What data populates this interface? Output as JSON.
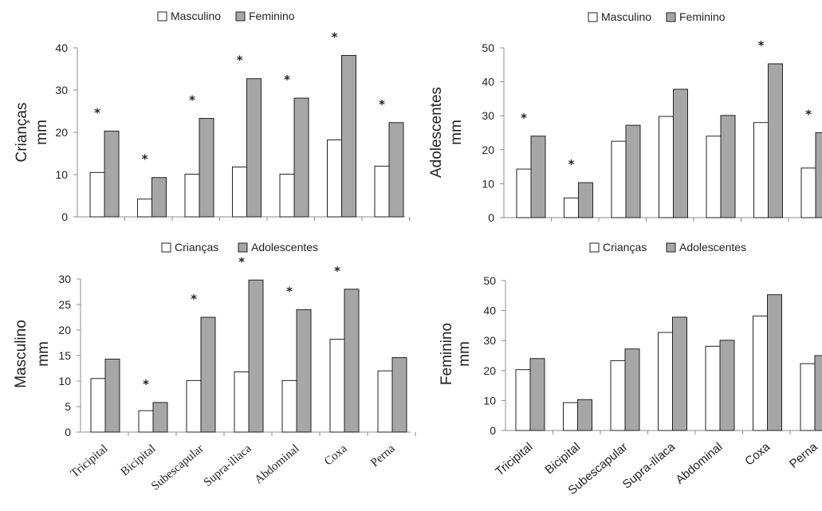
{
  "colors": {
    "masc": "#ffffff",
    "fem": "#a6a6a6",
    "criancas": "#ffffff",
    "adolescentes": "#a6a6a6"
  },
  "chart_data": [
    {
      "type": "bar",
      "panel": "top-left",
      "ylabel_main": "Crianças",
      "ylabel_unit": "mm",
      "ylim": [
        0,
        40
      ],
      "yticks": [
        "0",
        "10",
        "20",
        "30",
        "40"
      ],
      "categories": [
        "Tricipital",
        "Bicipital",
        "Subescapular",
        "Supra-ilíaca",
        "Abdominal",
        "Coxa",
        "Perna"
      ],
      "legend": [
        "Masculino",
        "Feminino"
      ],
      "series": [
        {
          "name": "Masculino",
          "values": [
            10.5,
            4.2,
            10.1,
            11.8,
            10.1,
            18.2,
            12.0
          ]
        },
        {
          "name": "Feminino",
          "values": [
            20.3,
            9.3,
            23.3,
            32.7,
            28.1,
            38.2,
            22.3
          ]
        }
      ],
      "significant": [
        true,
        true,
        true,
        true,
        true,
        true,
        true
      ],
      "grid": false,
      "legend_position": "top-center"
    },
    {
      "type": "bar",
      "panel": "top-right",
      "ylabel_main": "Adolescentes",
      "ylabel_unit": "mm",
      "ylim": [
        0,
        50
      ],
      "yticks": [
        "0",
        "10",
        "20",
        "30",
        "40",
        "50"
      ],
      "categories": [
        "Tricipital",
        "Bicipital",
        "Subescapular",
        "Supra-ilíaca",
        "Abdominal",
        "Coxa",
        "Perna"
      ],
      "legend": [
        "Masculino",
        "Feminino"
      ],
      "series": [
        {
          "name": "Masculino",
          "values": [
            14.3,
            5.8,
            22.5,
            29.8,
            24.0,
            28.0,
            14.6
          ]
        },
        {
          "name": "Feminino",
          "values": [
            24.0,
            10.3,
            27.2,
            37.8,
            30.1,
            45.3,
            25.0
          ]
        }
      ],
      "significant": [
        true,
        true,
        false,
        false,
        false,
        true,
        true
      ],
      "grid": false,
      "legend_position": "top-center"
    },
    {
      "type": "bar",
      "panel": "bottom-left",
      "ylabel_main": "Masculino",
      "ylabel_unit": "mm",
      "ylim": [
        0,
        30
      ],
      "yticks": [
        "0",
        "5",
        "10",
        "15",
        "20",
        "25",
        "30"
      ],
      "categories": [
        "Tricipital",
        "Bicipital",
        "Subescapular",
        "Supra-iliaca",
        "Abdominal",
        "Coxa",
        "Perna"
      ],
      "legend": [
        "Crianças",
        "Adolescentes"
      ],
      "series": [
        {
          "name": "Crianças",
          "values": [
            10.5,
            4.2,
            10.1,
            11.8,
            10.1,
            18.2,
            12.0
          ]
        },
        {
          "name": "Adolescentes",
          "values": [
            14.3,
            5.8,
            22.5,
            29.8,
            24.0,
            28.0,
            14.6
          ]
        }
      ],
      "significant": [
        false,
        true,
        true,
        true,
        true,
        true,
        false
      ],
      "grid": false,
      "legend_position": "top-center"
    },
    {
      "type": "bar",
      "panel": "bottom-right",
      "ylabel_main": "Feminino",
      "ylabel_unit": "mm",
      "ylim": [
        0,
        50
      ],
      "yticks": [
        "0",
        "10",
        "20",
        "30",
        "40",
        "50"
      ],
      "categories": [
        "Tricipital",
        "Bicipital",
        "Subescapular",
        "Supra-ilíaca",
        "Abdominal",
        "Coxa",
        "Perna"
      ],
      "legend": [
        "Crianças",
        "Adolescentes"
      ],
      "series": [
        {
          "name": "Crianças",
          "values": [
            20.3,
            9.3,
            23.3,
            32.7,
            28.1,
            38.2,
            22.3
          ]
        },
        {
          "name": "Adolescentes",
          "values": [
            24.0,
            10.3,
            27.2,
            37.8,
            30.1,
            45.3,
            25.0
          ]
        }
      ],
      "significant": [
        false,
        false,
        false,
        false,
        false,
        false,
        false
      ],
      "grid": false,
      "legend_position": "top-center"
    }
  ]
}
